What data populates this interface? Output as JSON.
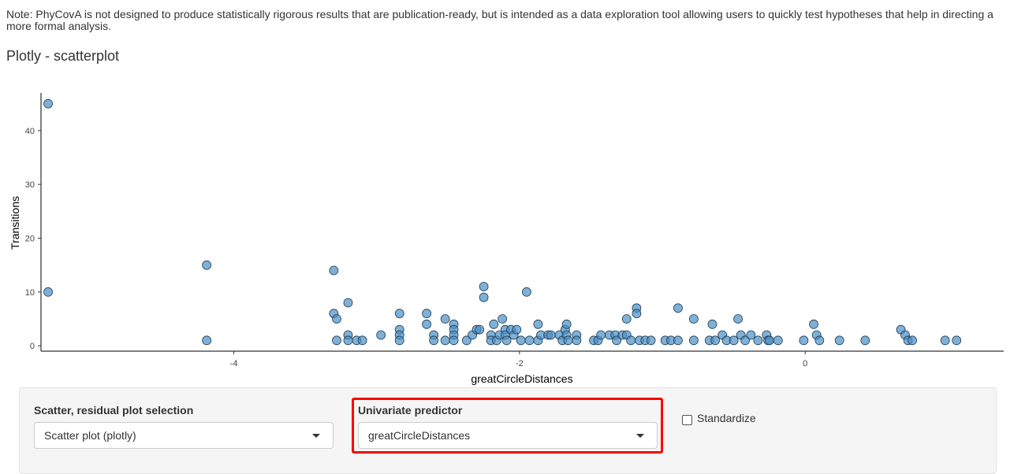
{
  "note": "Note: PhyCovA is not designed to produce statistically rigorous results that are publication-ready, but is intended as a data exploration tool allowing users to quickly test hypotheses that help in directing a more formal analysis.",
  "plot_title": "Plotly - scatterplot",
  "chart_data": {
    "type": "scatter",
    "xlabel": "greatCircleDistances",
    "ylabel": "Transitions",
    "xlim": [
      -5.35,
      1.39
    ],
    "ylim": [
      -1,
      47
    ],
    "xticks": [
      -4,
      -2,
      0
    ],
    "yticks": [
      0,
      10,
      20,
      30,
      40
    ],
    "grid": false,
    "marker_color": "#4a8fc4",
    "points": [
      [
        -5.3,
        45
      ],
      [
        -5.3,
        10
      ],
      [
        -4.19,
        15
      ],
      [
        -4.19,
        1
      ],
      [
        -3.3,
        14
      ],
      [
        -3.3,
        6
      ],
      [
        -3.28,
        5
      ],
      [
        -3.28,
        1
      ],
      [
        -3.2,
        8
      ],
      [
        -3.2,
        2
      ],
      [
        -3.2,
        1
      ],
      [
        -3.14,
        1
      ],
      [
        -3.1,
        1
      ],
      [
        -2.97,
        2
      ],
      [
        -2.84,
        6
      ],
      [
        -2.84,
        3
      ],
      [
        -2.84,
        2
      ],
      [
        -2.84,
        1
      ],
      [
        -2.65,
        6
      ],
      [
        -2.65,
        4
      ],
      [
        -2.6,
        2
      ],
      [
        -2.6,
        1
      ],
      [
        -2.52,
        5
      ],
      [
        -2.52,
        1
      ],
      [
        -2.46,
        4
      ],
      [
        -2.46,
        3
      ],
      [
        -2.46,
        2
      ],
      [
        -2.46,
        1
      ],
      [
        -2.37,
        1
      ],
      [
        -2.33,
        2
      ],
      [
        -2.3,
        3
      ],
      [
        -2.28,
        3
      ],
      [
        -2.25,
        11
      ],
      [
        -2.25,
        9
      ],
      [
        -2.2,
        2
      ],
      [
        -2.2,
        1
      ],
      [
        -2.18,
        4
      ],
      [
        -2.16,
        1
      ],
      [
        -2.14,
        2
      ],
      [
        -2.12,
        5
      ],
      [
        -2.1,
        3
      ],
      [
        -2.1,
        2
      ],
      [
        -2.09,
        1
      ],
      [
        -2.06,
        3
      ],
      [
        -2.04,
        2
      ],
      [
        -2.02,
        3
      ],
      [
        -1.99,
        1
      ],
      [
        -1.95,
        10
      ],
      [
        -1.93,
        1
      ],
      [
        -1.87,
        4
      ],
      [
        -1.87,
        1
      ],
      [
        -1.85,
        2
      ],
      [
        -1.8,
        2
      ],
      [
        -1.78,
        2
      ],
      [
        -1.72,
        2
      ],
      [
        -1.7,
        1
      ],
      [
        -1.68,
        3
      ],
      [
        -1.67,
        4
      ],
      [
        -1.67,
        2
      ],
      [
        -1.66,
        1
      ],
      [
        -1.6,
        2
      ],
      [
        -1.6,
        1
      ],
      [
        -1.48,
        1
      ],
      [
        -1.45,
        1
      ],
      [
        -1.43,
        2
      ],
      [
        -1.37,
        2
      ],
      [
        -1.33,
        2
      ],
      [
        -1.32,
        1
      ],
      [
        -1.28,
        2
      ],
      [
        -1.25,
        5
      ],
      [
        -1.25,
        2
      ],
      [
        -1.22,
        1
      ],
      [
        -1.18,
        7
      ],
      [
        -1.18,
        6
      ],
      [
        -1.16,
        1
      ],
      [
        -1.12,
        1
      ],
      [
        -1.08,
        1
      ],
      [
        -0.98,
        1
      ],
      [
        -0.94,
        1
      ],
      [
        -0.89,
        7
      ],
      [
        -0.89,
        1
      ],
      [
        -0.78,
        5
      ],
      [
        -0.78,
        1
      ],
      [
        -0.67,
        1
      ],
      [
        -0.65,
        4
      ],
      [
        -0.63,
        1
      ],
      [
        -0.58,
        2
      ],
      [
        -0.55,
        1
      ],
      [
        -0.5,
        1
      ],
      [
        -0.47,
        5
      ],
      [
        -0.45,
        2
      ],
      [
        -0.42,
        1
      ],
      [
        -0.38,
        2
      ],
      [
        -0.33,
        1
      ],
      [
        -0.27,
        2
      ],
      [
        -0.26,
        1
      ],
      [
        -0.25,
        1
      ],
      [
        -0.19,
        1
      ],
      [
        -0.01,
        1
      ],
      [
        0.06,
        4
      ],
      [
        0.08,
        2
      ],
      [
        0.1,
        1
      ],
      [
        0.24,
        1
      ],
      [
        0.42,
        1
      ],
      [
        0.67,
        3
      ],
      [
        0.7,
        2
      ],
      [
        0.72,
        1
      ],
      [
        0.75,
        1
      ],
      [
        0.98,
        1
      ],
      [
        1.06,
        1
      ]
    ]
  },
  "controls": {
    "plot_selection": {
      "label": "Scatter, residual plot selection",
      "value": "Scatter plot (plotly)"
    },
    "predictor": {
      "label": "Univariate predictor",
      "value": "greatCircleDistances"
    },
    "standardize": {
      "label": "Standardize",
      "checked": false
    }
  }
}
